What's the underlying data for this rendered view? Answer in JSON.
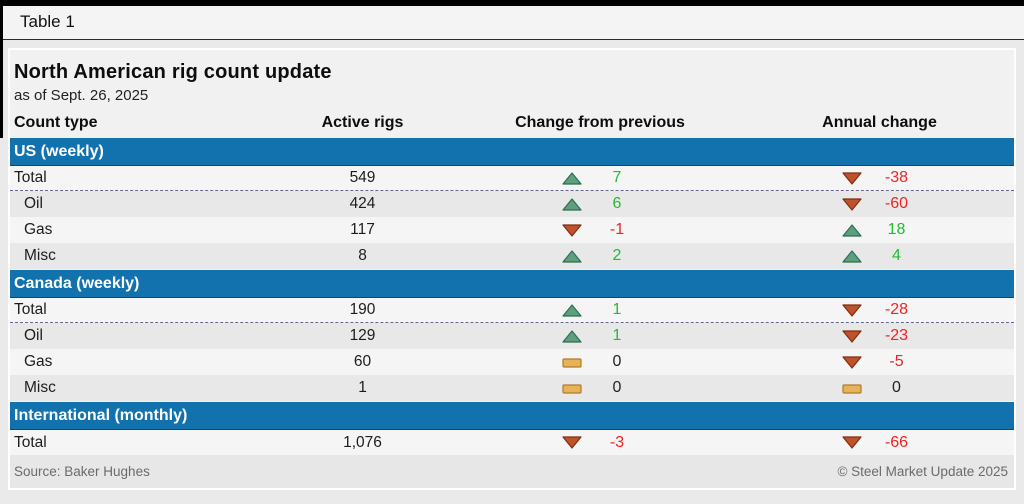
{
  "window": {
    "table_label": "Table 1"
  },
  "table": {
    "title": "North American rig count update",
    "subtitle": "as of Sept. 26, 2025",
    "columns": [
      "Count type",
      "Active rigs",
      "Change from previous",
      "Annual change"
    ],
    "sections": [
      {
        "label": "US (weekly)",
        "rows": [
          {
            "type": "Total",
            "total": true,
            "active": "549",
            "change": {
              "dir": "up",
              "text": "7"
            },
            "annual": {
              "dir": "down",
              "text": "-38"
            }
          },
          {
            "type": "Oil",
            "total": false,
            "active": "424",
            "change": {
              "dir": "up",
              "text": "6"
            },
            "annual": {
              "dir": "down",
              "text": "-60"
            }
          },
          {
            "type": "Gas",
            "total": false,
            "active": "117",
            "change": {
              "dir": "down",
              "text": "-1"
            },
            "annual": {
              "dir": "up",
              "text": "18"
            }
          },
          {
            "type": "Misc",
            "total": false,
            "active": "8",
            "change": {
              "dir": "up",
              "text": "2"
            },
            "annual": {
              "dir": "up",
              "text": "4"
            }
          }
        ]
      },
      {
        "label": "Canada (weekly)",
        "rows": [
          {
            "type": "Total",
            "total": true,
            "active": "190",
            "change": {
              "dir": "up",
              "text": "1"
            },
            "annual": {
              "dir": "down",
              "text": "-28"
            }
          },
          {
            "type": "Oil",
            "total": false,
            "active": "129",
            "change": {
              "dir": "up",
              "text": "1"
            },
            "annual": {
              "dir": "down",
              "text": "-23"
            }
          },
          {
            "type": "Gas",
            "total": false,
            "active": "60",
            "change": {
              "dir": "flat",
              "text": "0"
            },
            "annual": {
              "dir": "down",
              "text": "-5"
            }
          },
          {
            "type": "Misc",
            "total": false,
            "active": "1",
            "change": {
              "dir": "flat",
              "text": "0"
            },
            "annual": {
              "dir": "flat",
              "text": "0"
            }
          }
        ]
      },
      {
        "label": "International (monthly)",
        "rows": [
          {
            "type": "Total",
            "total": true,
            "active": "1,076",
            "change": {
              "dir": "down",
              "text": "-3"
            },
            "annual": {
              "dir": "down",
              "text": "-66"
            }
          }
        ]
      }
    ],
    "footer": {
      "source": "Source: Baker Hughes",
      "copyright": "© Steel Market Update 2025"
    }
  },
  "colors": {
    "accent_blue": "#1272ad",
    "positive_text": "#22bb33",
    "negative_text": "#f22222",
    "neutral_text": "#222222",
    "up_fill": "#5f9f7f",
    "up_stroke": "#2d6e52",
    "down_fill": "#c0522b",
    "down_stroke": "#7e2f12",
    "flat_fill": "#e7b259",
    "flat_stroke": "#ad7d28"
  }
}
